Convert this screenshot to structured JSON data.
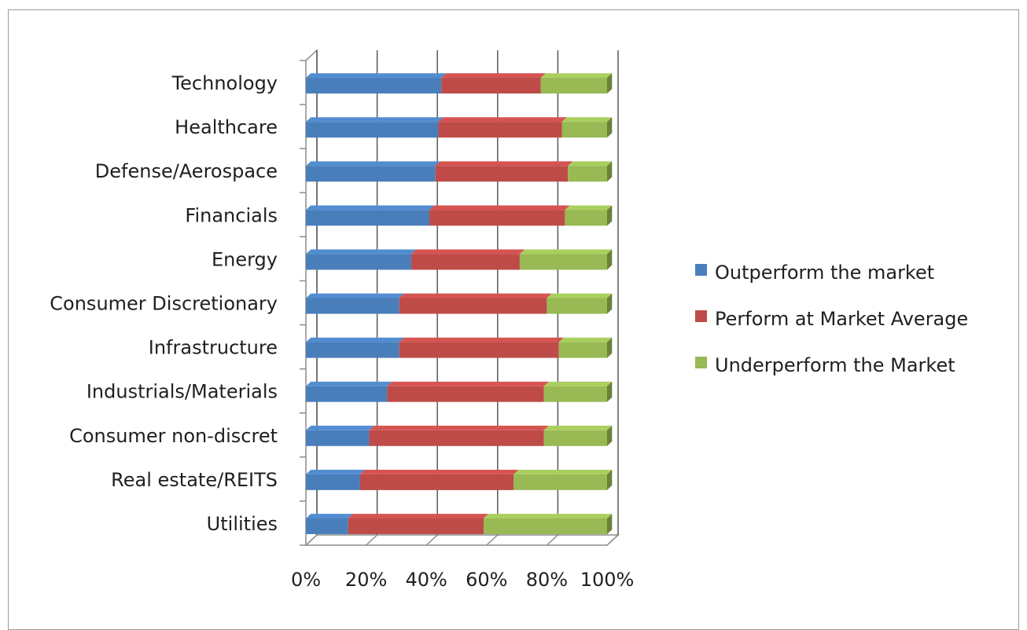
{
  "chart_data": {
    "type": "bar",
    "orientation": "horizontal",
    "stacked": "100%",
    "style": "3d",
    "categories": [
      "Technology",
      "Healthcare",
      "Defense/Aerospace",
      "Financials",
      "Energy",
      "Consumer Discretionary",
      "Infrastructure",
      "Industrials/Materials",
      "Consumer non-discret",
      "Real estate/REITS",
      "Utilities"
    ],
    "series": [
      {
        "name": "Outperform the market",
        "color": "#4a7ebb",
        "values": [
          45,
          44,
          43,
          41,
          35,
          31,
          31,
          27,
          21,
          18,
          14
        ]
      },
      {
        "name": "Perform at Market Average",
        "color": "#be4b48",
        "values": [
          33,
          41,
          44,
          45,
          36,
          49,
          53,
          52,
          58,
          51,
          45
        ]
      },
      {
        "name": "Underperform the Market",
        "color": "#98b954",
        "values": [
          22,
          15,
          13,
          14,
          29,
          20,
          16,
          21,
          21,
          31,
          41
        ]
      }
    ],
    "x_ticks": [
      "0%",
      "20%",
      "40%",
      "60%",
      "80%",
      "100%"
    ],
    "xlim": [
      0,
      100
    ],
    "grid": true,
    "legend_position": "right",
    "title": "",
    "xlabel": "",
    "ylabel": ""
  }
}
